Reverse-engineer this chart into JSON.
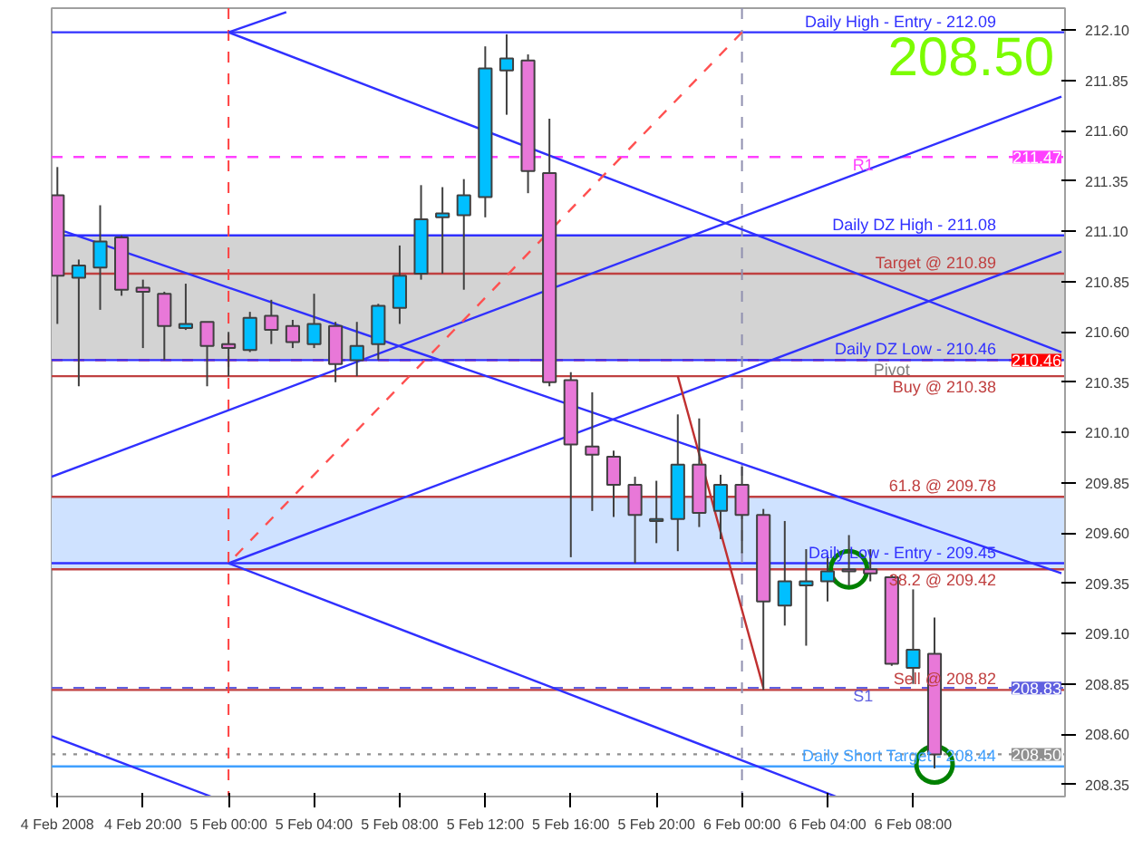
{
  "chart_data": {
    "type": "candlestick",
    "x": [
      "2008-02-04T16:00",
      "2008-02-04T17:00",
      "2008-02-04T18:00",
      "2008-02-04T19:00",
      "2008-02-04T20:00",
      "2008-02-04T21:00",
      "2008-02-04T22:00",
      "2008-02-04T23:00",
      "2008-02-05T00:00",
      "2008-02-05T01:00",
      "2008-02-05T02:00",
      "2008-02-05T03:00",
      "2008-02-05T04:00",
      "2008-02-05T05:00",
      "2008-02-05T06:00",
      "2008-02-05T07:00",
      "2008-02-05T08:00",
      "2008-02-05T09:00",
      "2008-02-05T10:00",
      "2008-02-05T11:00",
      "2008-02-05T12:00",
      "2008-02-05T13:00",
      "2008-02-05T14:00",
      "2008-02-05T15:00",
      "2008-02-05T16:00",
      "2008-02-05T17:00",
      "2008-02-05T18:00",
      "2008-02-05T19:00",
      "2008-02-05T20:00",
      "2008-02-05T21:00",
      "2008-02-05T22:00",
      "2008-02-05T23:00",
      "2008-02-06T00:00",
      "2008-02-06T01:00",
      "2008-02-06T02:00",
      "2008-02-06T03:00",
      "2008-02-06T04:00",
      "2008-02-06T05:00",
      "2008-02-06T06:00",
      "2008-02-06T07:00",
      "2008-02-06T08:00",
      "2008-02-06T09:00"
    ],
    "ohlc": [
      [
        211.28,
        211.42,
        210.64,
        210.88
      ],
      [
        210.87,
        210.96,
        210.33,
        210.93
      ],
      [
        210.92,
        211.23,
        210.71,
        211.05
      ],
      [
        211.07,
        211.08,
        210.78,
        210.81
      ],
      [
        210.82,
        210.86,
        210.52,
        210.8
      ],
      [
        210.79,
        210.8,
        210.46,
        210.63
      ],
      [
        210.62,
        210.84,
        210.61,
        210.64
      ],
      [
        210.65,
        210.65,
        210.33,
        210.53
      ],
      [
        210.54,
        210.6,
        210.38,
        210.52
      ],
      [
        210.51,
        210.7,
        210.5,
        210.67
      ],
      [
        210.68,
        210.76,
        210.54,
        210.61
      ],
      [
        210.63,
        210.66,
        210.52,
        210.55
      ],
      [
        210.54,
        210.79,
        210.52,
        210.64
      ],
      [
        210.63,
        210.65,
        210.35,
        210.44
      ],
      [
        210.46,
        210.65,
        210.38,
        210.53
      ],
      [
        210.54,
        210.74,
        210.46,
        210.73
      ],
      [
        210.72,
        211.03,
        210.64,
        210.88
      ],
      [
        210.89,
        211.33,
        210.86,
        211.16
      ],
      [
        211.17,
        211.32,
        210.89,
        211.19
      ],
      [
        211.18,
        211.36,
        210.81,
        211.28
      ],
      [
        211.27,
        212.02,
        211.17,
        211.91
      ],
      [
        211.9,
        212.08,
        211.68,
        211.96
      ],
      [
        211.95,
        211.98,
        211.29,
        211.4
      ],
      [
        211.39,
        211.66,
        210.33,
        210.35
      ],
      [
        210.36,
        210.4,
        209.48,
        210.04
      ],
      [
        210.03,
        210.3,
        209.71,
        209.99
      ],
      [
        209.98,
        210.01,
        209.68,
        209.84
      ],
      [
        209.84,
        209.88,
        209.45,
        209.69
      ],
      [
        209.66,
        209.86,
        209.55,
        209.67
      ],
      [
        209.67,
        210.19,
        209.51,
        209.94
      ],
      [
        209.94,
        210.17,
        209.63,
        209.7
      ],
      [
        209.71,
        209.89,
        209.57,
        209.84
      ],
      [
        209.84,
        209.93,
        209.5,
        209.69
      ],
      [
        209.69,
        209.72,
        208.82,
        209.26
      ],
      [
        209.24,
        209.66,
        209.14,
        209.36
      ],
      [
        209.34,
        209.52,
        209.04,
        209.36
      ],
      [
        209.36,
        209.49,
        209.26,
        209.41
      ],
      [
        209.42,
        209.59,
        209.34,
        209.41
      ],
      [
        209.42,
        209.52,
        209.36,
        209.4
      ],
      [
        209.38,
        209.39,
        208.94,
        208.95
      ],
      [
        208.93,
        209.32,
        208.85,
        209.02
      ],
      [
        209.0,
        209.18,
        208.43,
        208.5
      ]
    ],
    "colors": [
      "#e878d8",
      "#00bfff",
      "#00bfff",
      "#e878d8",
      "#e878d8",
      "#e878d8",
      "#00bfff",
      "#e878d8",
      "#e878d8",
      "#00bfff",
      "#e878d8",
      "#e878d8",
      "#00bfff",
      "#e878d8",
      "#00bfff",
      "#00bfff",
      "#00bfff",
      "#00bfff",
      "#00bfff",
      "#00bfff",
      "#00bfff",
      "#00bfff",
      "#e878d8",
      "#e878d8",
      "#e878d8",
      "#e878d8",
      "#e878d8",
      "#e878d8",
      "#00bfff",
      "#00bfff",
      "#e878d8",
      "#00bfff",
      "#e878d8",
      "#e878d8",
      "#00bfff",
      "#00bfff",
      "#00bfff",
      "#e878d8",
      "#e878d8",
      "#e878d8",
      "#00bfff",
      "#e878d8"
    ],
    "series": [
      {
        "type": "line",
        "color": "#3030ff",
        "x": [
          "2008-02-05T00:00",
          "2008-02-05T02:42"
        ],
        "values": [
          212.09,
          212.19
        ]
      },
      {
        "type": "line",
        "color": "#3030ff",
        "x": [
          "2008-02-05T00:00",
          "2008-02-06T14:56"
        ],
        "values": [
          212.09,
          210.5
        ]
      },
      {
        "type": "line",
        "color": "#3030ff",
        "x": [
          "2008-02-04T15:44",
          "2008-02-06T14:56"
        ],
        "values": [
          209.88,
          211.77
        ]
      },
      {
        "type": "line",
        "color": "#3030ff",
        "x": [
          "2008-02-05T00:00",
          "2008-02-06T14:56"
        ],
        "values": [
          209.45,
          211.0
        ]
      },
      {
        "type": "line",
        "color": "#3030ff",
        "x": [
          "2008-02-05T00:00",
          "2008-02-06T04:24"
        ],
        "values": [
          209.45,
          208.29
        ]
      },
      {
        "type": "line",
        "color": "#3030ff",
        "x": [
          "2008-02-04T16:20",
          "2008-02-06T14:56"
        ],
        "values": [
          211.1,
          209.4
        ]
      },
      {
        "type": "line",
        "color": "#3030ff",
        "x": [
          "2008-02-04T15:44",
          "2008-02-04T23:11"
        ],
        "values": [
          208.59,
          208.29
        ]
      },
      {
        "type": "line",
        "color": "#ff5050",
        "line_style": "dashed",
        "x": [
          "2008-02-05T00:00",
          "2008-02-06T00:00"
        ],
        "values": [
          209.45,
          212.09
        ]
      },
      {
        "type": "line",
        "color": "#c03030",
        "x": [
          "2008-02-05T21:00",
          "2008-02-06T01:00"
        ],
        "values": [
          210.38,
          208.83
        ]
      },
      {
        "type": "scatter",
        "color": "#008000",
        "marker": "circle",
        "x": [
          "2008-02-06T05:00",
          "2008-02-06T09:00"
        ],
        "values": [
          209.42,
          208.45
        ]
      }
    ],
    "bands": [
      {
        "axis": "y",
        "from": 210.46,
        "to": 211.08,
        "color": "#d3d3d3"
      },
      {
        "axis": "y",
        "from": 209.42,
        "to": 209.78,
        "color": "#cfe2ff"
      }
    ],
    "ref_lines": [
      {
        "axis": "y",
        "value": 212.09,
        "label": "Daily High - Entry - 212.09",
        "color": "#3030ff"
      },
      {
        "axis": "y",
        "value": 211.47,
        "label": "211.47",
        "color": "#ff40ff",
        "line_style": "dashed"
      },
      {
        "axis": "y",
        "value": 211.08,
        "label": "Daily DZ High - 211.08",
        "color": "#3030ff"
      },
      {
        "axis": "y",
        "value": 210.89,
        "label": "Target @ 210.89",
        "color": "#c04040"
      },
      {
        "axis": "y",
        "value": 210.46,
        "label": "210.46",
        "color": "#ff0000",
        "line_style": "dashed"
      },
      {
        "axis": "y",
        "value": 210.46,
        "label": "Daily DZ Low - 210.46",
        "color": "#3030ff"
      },
      {
        "axis": "y",
        "value": 210.38,
        "label": "Buy @ 210.38",
        "color": "#c04040"
      },
      {
        "axis": "y",
        "value": 209.78,
        "label": "61.8 @ 209.78",
        "color": "#c04040"
      },
      {
        "axis": "y",
        "value": 209.45,
        "label": "Daily Low - Entry - 209.45",
        "color": "#3030ff"
      },
      {
        "axis": "y",
        "value": 209.42,
        "label": "38.2 @ 209.42",
        "color": "#c04040"
      },
      {
        "axis": "y",
        "value": 208.83,
        "label": "208.83",
        "color": "#6060e0",
        "line_style": "dashed"
      },
      {
        "axis": "y",
        "value": 208.82,
        "label": "Sell @ 208.82",
        "color": "#c04040"
      },
      {
        "axis": "y",
        "value": 208.5,
        "label": "208.50",
        "color": "#909090",
        "line_style": "dotted"
      },
      {
        "axis": "y",
        "value": 208.44,
        "label": "Daily Short Target - 208.44",
        "color": "#40a0ff"
      },
      {
        "axis": "x",
        "value": "2008-02-05T00:00",
        "label": null,
        "color": "#ff4040",
        "line_style": "dashed"
      },
      {
        "axis": "x",
        "value": "2008-02-06T00:00",
        "label": null,
        "color": "#9090b0",
        "line_style": "dashed"
      }
    ],
    "annotations": [
      "208.50",
      {
        "text": "R1",
        "x": "2008-02-06T05:40",
        "y": 211.43
      },
      {
        "text": "Pivot",
        "x": "2008-02-06T07:00",
        "y": 210.41
      },
      {
        "text": "S1",
        "x": "2008-02-06T05:40",
        "y": 208.79
      }
    ],
    "xlim": [
      "2008-02-04T15:44",
      "2008-02-06T15:06"
    ],
    "xticks": [
      {
        "value": "2008-02-04T16:00",
        "label": "4 Feb 2008"
      },
      {
        "value": "2008-02-04T20:00",
        "label": "4 Feb 20:00"
      },
      {
        "value": "2008-02-05T00:00",
        "label": "5 Feb 00:00"
      },
      {
        "value": "2008-02-05T04:00",
        "label": "5 Feb 04:00"
      },
      {
        "value": "2008-02-05T08:00",
        "label": "5 Feb 08:00"
      },
      {
        "value": "2008-02-05T12:00",
        "label": "5 Feb 12:00"
      },
      {
        "value": "2008-02-05T16:00",
        "label": "5 Feb 16:00"
      },
      {
        "value": "2008-02-05T20:00",
        "label": "5 Feb 20:00"
      },
      {
        "value": "2008-02-06T00:00",
        "label": "6 Feb 00:00"
      },
      {
        "value": "2008-02-06T04:00",
        "label": "6 Feb 04:00"
      },
      {
        "value": "2008-02-06T08:00",
        "label": "6 Feb 08:00"
      }
    ],
    "ylim": [
      208.29,
      212.21
    ],
    "yticks": [
      208.35,
      {
        "value": 208.6,
        "label": "208.60"
      },
      208.85,
      {
        "value": 209.1,
        "label": "209.10"
      },
      209.35,
      {
        "value": 209.6,
        "label": "209.60"
      },
      209.85,
      {
        "value": 210.1,
        "label": "210.10"
      },
      210.35,
      {
        "value": 210.6,
        "label": "210.60"
      },
      210.85,
      {
        "value": 211.1,
        "label": "211.10"
      },
      211.35,
      {
        "value": 211.6,
        "label": "211.60"
      },
      211.85,
      {
        "value": 212.1,
        "label": "212.10"
      }
    ],
    "grid": false
  }
}
